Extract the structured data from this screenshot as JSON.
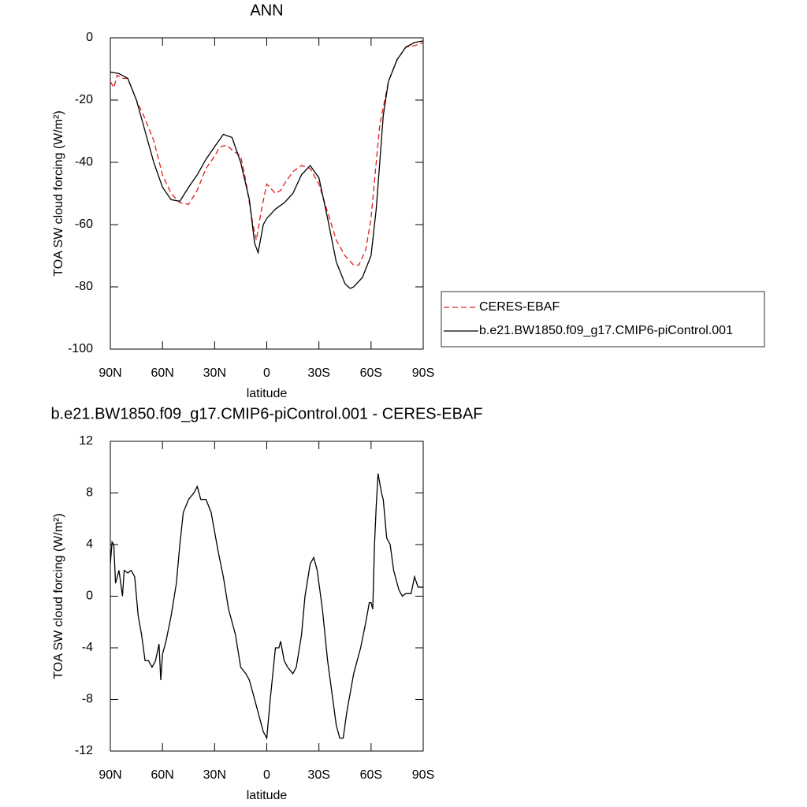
{
  "chart_data": [
    {
      "type": "line",
      "title": "ANN",
      "xlabel": "latitude",
      "ylabel": "TOA SW cloud forcing (W/m²)",
      "xlim": [
        90,
        -90
      ],
      "xticks": [
        {
          "value": 90,
          "label": "90N"
        },
        {
          "value": 60,
          "label": "60N"
        },
        {
          "value": 30,
          "label": "30N"
        },
        0,
        {
          "value": -30,
          "label": "30S"
        },
        {
          "value": -60,
          "label": "60S"
        },
        {
          "value": -90,
          "label": "90S"
        }
      ],
      "ylim": [
        -100,
        0
      ],
      "yticks": [
        0,
        -20,
        -40,
        -60,
        -80,
        -100
      ],
      "legend": "right",
      "series": [
        {
          "name": "CERES-EBAF",
          "color": "#e41a1c",
          "dash": true,
          "x": [
            90,
            88,
            86,
            83,
            80,
            75,
            70,
            65,
            60,
            55,
            50,
            45,
            40,
            35,
            30,
            27,
            23,
            20,
            15,
            12,
            8,
            6,
            3,
            0,
            -5,
            -8,
            -10,
            -15,
            -20,
            -25,
            -30,
            -35,
            -40,
            -45,
            -50,
            -53,
            -57,
            -60,
            -63,
            -65,
            -70,
            -75,
            -80,
            -85,
            -88,
            -90
          ],
          "values": [
            -14,
            -16,
            -12,
            -13,
            -13,
            -20,
            -26,
            -33,
            -44,
            -50,
            -53,
            -53.5,
            -49,
            -42,
            -38,
            -35,
            -34.5,
            -36,
            -38,
            -46,
            -60,
            -65,
            -55,
            -47,
            -50,
            -49,
            -47,
            -43,
            -41,
            -42,
            -47,
            -56,
            -65,
            -70,
            -73,
            -73,
            -68,
            -58,
            -40,
            -28,
            -14,
            -7,
            -3,
            -2.5,
            -2,
            -1.5
          ]
        },
        {
          "name": "b.e21.BW1850.f09_g17.CMIP6-piControl.001",
          "color": "#000000",
          "dash": false,
          "x": [
            90,
            85,
            80,
            75,
            70,
            65,
            60,
            55,
            50,
            45,
            40,
            35,
            30,
            25,
            20,
            15,
            10,
            7,
            5,
            2,
            0,
            -5,
            -10,
            -15,
            -20,
            -25,
            -30,
            -35,
            -40,
            -45,
            -48,
            -50,
            -55,
            -60,
            -63,
            -65,
            -67,
            -70,
            -75,
            -80,
            -85,
            -90
          ],
          "values": [
            -11,
            -11.5,
            -13,
            -20,
            -30,
            -40,
            -48,
            -52,
            -52.5,
            -48,
            -44,
            -39,
            -35,
            -31,
            -32,
            -40,
            -52,
            -66,
            -69,
            -60,
            -58,
            -55,
            -53,
            -50,
            -44,
            -41,
            -45,
            -58,
            -72,
            -79,
            -80.5,
            -80,
            -77,
            -70,
            -55,
            -40,
            -25,
            -14,
            -7,
            -3,
            -1.5,
            -1
          ]
        }
      ]
    },
    {
      "type": "line",
      "title": "b.e21.BW1850.f09_g17.CMIP6-piControl.001 - CERES-EBAF",
      "xlabel": "latitude",
      "ylabel": "TOA SW cloud forcing (W/m²)",
      "xlim": [
        90,
        -90
      ],
      "xticks": [
        {
          "value": 90,
          "label": "90N"
        },
        {
          "value": 60,
          "label": "60N"
        },
        {
          "value": 30,
          "label": "30N"
        },
        0,
        {
          "value": -30,
          "label": "30S"
        },
        {
          "value": -60,
          "label": "60S"
        },
        {
          "value": -90,
          "label": "90S"
        }
      ],
      "ylim": [
        -12,
        12
      ],
      "yticks": [
        12,
        8,
        4,
        0,
        -4,
        -8,
        -12
      ],
      "series": [
        {
          "color": "#000000",
          "dash": false,
          "x": [
            90,
            89,
            88,
            87,
            85,
            83,
            82,
            80,
            78,
            76,
            74,
            72,
            70,
            68,
            66,
            64,
            62,
            61,
            60,
            58,
            55,
            52,
            50,
            48,
            45,
            42,
            40,
            38,
            35,
            32,
            30,
            28,
            25,
            22,
            18,
            15,
            12,
            10,
            8,
            5,
            2,
            0,
            -2,
            -5,
            -7,
            -8,
            -10,
            -12,
            -15,
            -17,
            -20,
            -22,
            -25,
            -27,
            -29,
            -32,
            -35,
            -38,
            -40,
            -42,
            -44,
            -46,
            -50,
            -54,
            -57,
            -59,
            -60,
            -61,
            -62,
            -63,
            -64,
            -66,
            -67,
            -69,
            -71,
            -73,
            -76,
            -78,
            -80,
            -83,
            -85,
            -87,
            -90
          ],
          "values": [
            2.5,
            4.2,
            4,
            1,
            2,
            0,
            2,
            1.8,
            2,
            1.5,
            -1.5,
            -3,
            -5,
            -5,
            -5.5,
            -5,
            -3.7,
            -6.5,
            -4.5,
            -3.5,
            -1.5,
            1,
            4,
            6.5,
            7.5,
            8,
            8.5,
            7.5,
            7.5,
            6.5,
            5,
            3.5,
            1.5,
            -1,
            -3,
            -5.5,
            -6,
            -6.5,
            -7.5,
            -9,
            -10.5,
            -11,
            -8,
            -4,
            -4,
            -3.5,
            -5,
            -5.5,
            -6,
            -5.5,
            -3,
            0,
            2.5,
            3,
            2,
            -1,
            -5,
            -8,
            -10,
            -11,
            -11,
            -9,
            -6,
            -4,
            -2,
            -0.5,
            -0.5,
            -1,
            4,
            7,
            9.5,
            8,
            7.5,
            4.5,
            4,
            2,
            0.5,
            0,
            0.2,
            0.2,
            1.5,
            0.7,
            0.7
          ]
        }
      ]
    }
  ]
}
